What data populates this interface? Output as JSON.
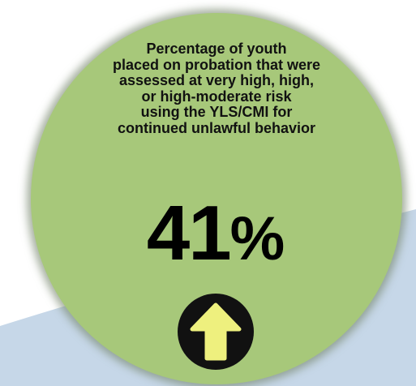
{
  "caption_lines": [
    "Percentage of youth",
    "placed on probation that were",
    "assessed at very high, high,",
    "or high-moderate risk",
    "using the YLS/CMI for",
    "continued unlawful behavior"
  ],
  "stat": {
    "value": "41",
    "unit": "%"
  },
  "trend_icon": "arrow-up-icon",
  "colors": {
    "circle_fill": "#a7c87a",
    "background_swoosh": "#c6d7e8",
    "icon_background": "#111111",
    "arrow_fill": "#eef07e"
  }
}
